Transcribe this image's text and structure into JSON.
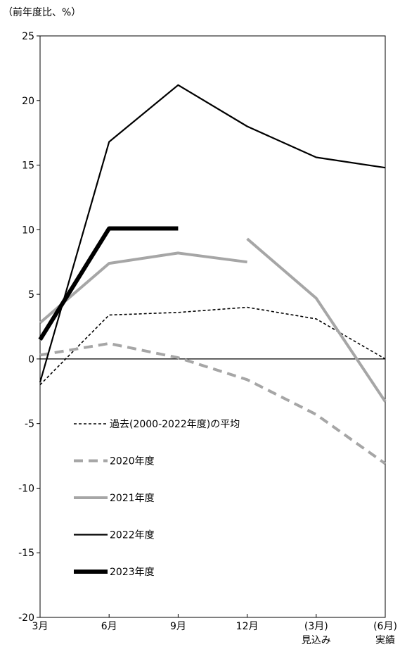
{
  "chart_data": {
    "type": "line",
    "unit_label": "（前年度比、%）",
    "categories": [
      "3月",
      "6月",
      "9月",
      "12月",
      "(3月)",
      "(6月)"
    ],
    "category_sublabels": [
      "",
      "",
      "",
      "",
      "見込み",
      "実績"
    ],
    "ylim": [
      -20,
      25
    ],
    "yticks": [
      25,
      20,
      15,
      10,
      5,
      0,
      -5,
      -10,
      -15,
      -20
    ],
    "grid": false,
    "zero_line": true,
    "series": [
      {
        "name": "過去(2000-2022年度)の平均",
        "values": [
          -2.0,
          3.4,
          3.6,
          4.0,
          3.1,
          0.0
        ],
        "color": "#000000",
        "style": "dotted"
      },
      {
        "name": "2020年度",
        "values": [
          0.3,
          1.2,
          0.1,
          -1.6,
          -4.3,
          -8.1
        ],
        "color": "#a6a6a6",
        "style": "dashed"
      },
      {
        "name": "2021年度",
        "values": [
          2.8,
          7.4,
          8.2,
          7.5,
          null,
          null
        ],
        "color": "#a6a6a6",
        "style": "solid"
      },
      {
        "name": "2022年度",
        "values": [
          -1.8,
          16.8,
          21.2,
          18.0,
          15.6,
          14.8
        ],
        "color": "#000000",
        "style": "thin"
      },
      {
        "name": "2023年度",
        "values": [
          1.5,
          10.1,
          10.1,
          null,
          null,
          null
        ],
        "color": "#000000",
        "style": "thick"
      }
    ],
    "extra_segment": {
      "series": "2021年度",
      "values": [
        null,
        null,
        null,
        9.3,
        4.7,
        -3.3
      ]
    }
  }
}
